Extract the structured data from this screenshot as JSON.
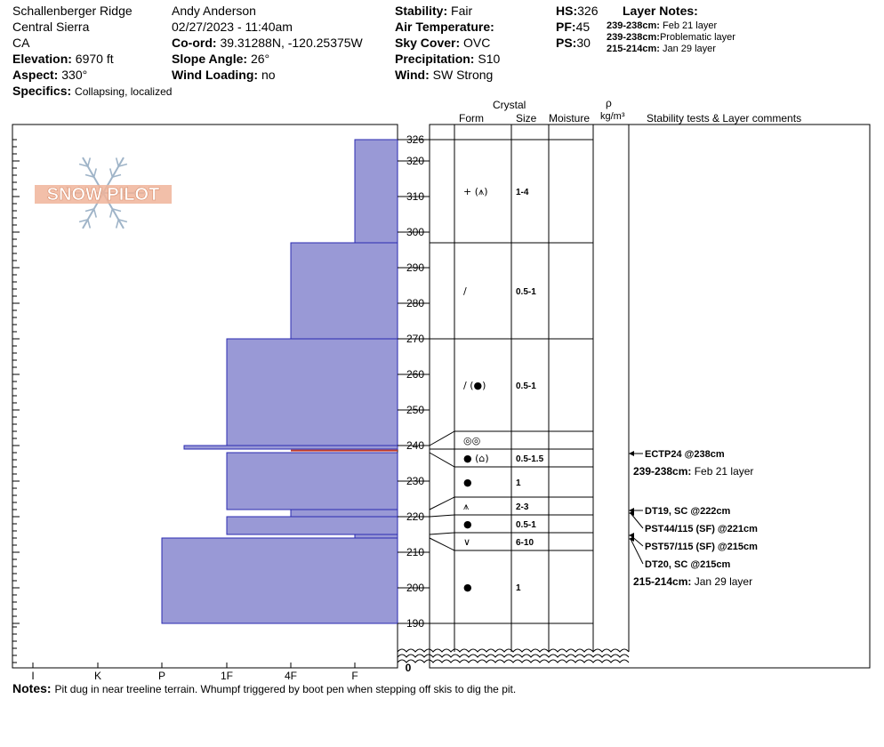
{
  "header": {
    "location": "Schallenberger Ridge",
    "region": "Central Sierra",
    "state": "CA",
    "elevation_label": "Elevation:",
    "elevation": "6970 ft",
    "aspect_label": "Aspect:",
    "aspect": "330°",
    "specifics_label": "Specifics:",
    "specifics": "Collapsing, localized",
    "observer": "Andy Anderson",
    "datetime": "02/27/2023 - 11:40am",
    "coord_label": "Co-ord:",
    "coord": "39.31288N, -120.25375W",
    "slope_label": "Slope Angle:",
    "slope": "26°",
    "wind_loading_label": "Wind Loading:",
    "wind_loading": "no",
    "stability_label": "Stability:",
    "stability": "Fair",
    "air_temp_label": "Air Temperature:",
    "air_temp": "",
    "sky_label": "Sky Cover:",
    "sky": "OVC",
    "precip_label": "Precipitation:",
    "precip": "S10",
    "wind_label": "Wind:",
    "wind": "SW Strong",
    "hs_label": "HS:",
    "hs": "326",
    "pf_label": "PF:",
    "pf": "45",
    "ps_label": "PS:",
    "ps": "30",
    "layer_notes_label": "Layer Notes:",
    "layer_notes": [
      {
        "range": "239-238cm:",
        "text": "Feb 21 layer"
      },
      {
        "range": "239-238cm:",
        "text": "Problematic layer"
      },
      {
        "range": "215-214cm:",
        "text": "Jan 29 layer"
      }
    ]
  },
  "logo": {
    "text": "SNOW PILOT"
  },
  "columns": {
    "crystal": "Crystal",
    "form": "Form",
    "size": "Size",
    "moisture": "Moisture",
    "rho": "ρ",
    "density_unit": "kg/m³",
    "stability_comments": "Stability tests & Layer comments"
  },
  "notes": {
    "label": "Notes:",
    "text": "Pit dug in near treeline terrain. Whumpf triggered by boot pen when stepping off skis to dig the pit."
  },
  "chart_data": {
    "type": "snow-profile",
    "hardness_ticks": [
      "I",
      "K",
      "P",
      "1F",
      "4F",
      "F"
    ],
    "height_ticks": [
      190,
      200,
      210,
      220,
      230,
      240,
      250,
      260,
      270,
      280,
      290,
      300,
      310,
      320,
      326
    ],
    "height_zero": "0",
    "hardness_profile": [
      {
        "top": 326,
        "bottom": 297,
        "hardness": "F"
      },
      {
        "top": 297,
        "bottom": 270,
        "hardness": "4F"
      },
      {
        "top": 270,
        "bottom": 240,
        "hardness": "1F"
      },
      {
        "top": 240,
        "bottom": 239,
        "hardness": "P+"
      },
      {
        "top": 238,
        "bottom": 222,
        "hardness": "1F"
      },
      {
        "top": 222,
        "bottom": 220,
        "hardness": "4F"
      },
      {
        "top": 220,
        "bottom": 215,
        "hardness": "1F"
      },
      {
        "top": 215,
        "bottom": 214,
        "hardness": "F"
      },
      {
        "top": 214,
        "bottom": 190,
        "hardness": "P"
      }
    ],
    "colors": {
      "layer_fill": "#9999d6",
      "layer_stroke": "#2a2ab0",
      "problem_layer": "#c0392b"
    },
    "layers": [
      {
        "top": 326,
        "bottom": 297,
        "form": "+ (⩚)",
        "size": "1-4"
      },
      {
        "top": 297,
        "bottom": 270,
        "form": "/",
        "size": "0.5-1"
      },
      {
        "top": 270,
        "bottom": 244,
        "form": "/ (●)",
        "size": "0.5-1"
      },
      {
        "top": 244,
        "bottom": 240,
        "form": "◎◎",
        "size": ""
      },
      {
        "top": 240,
        "bottom": 235,
        "form": "● (⌂)",
        "size": "0.5-1.5"
      },
      {
        "top": 235,
        "bottom": 225,
        "form": "●",
        "size": "1"
      },
      {
        "top": 225,
        "bottom": 220,
        "form": "⩚",
        "size": "2-3"
      },
      {
        "top": 220,
        "bottom": 216,
        "form": "●",
        "size": "0.5-1"
      },
      {
        "top": 216,
        "bottom": 211,
        "form": "∨",
        "size": "6-10"
      },
      {
        "top": 211,
        "bottom": 190,
        "form": "●",
        "size": "1"
      }
    ],
    "tests": [
      {
        "label": "ECTP24 @238cm",
        "arrow": true
      },
      {
        "label_b": "239-238cm:",
        "label": " Feb 21 layer",
        "arrow": false
      },
      {
        "label": "DT19, SC @222cm",
        "arrow": true
      },
      {
        "label": "PST44/115 (SF) @221cm",
        "arrow": true
      },
      {
        "label": "PST57/115 (SF) @215cm",
        "arrow": true
      },
      {
        "label": "DT20, SC @215cm",
        "arrow": true
      },
      {
        "label_b": "215-214cm:",
        "label": " Jan 29 layer",
        "arrow": false
      }
    ]
  }
}
